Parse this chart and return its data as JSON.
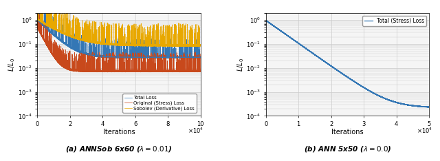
{
  "left_caption": "(a) ANNSob 6x60 ($\\lambda = 0.01$)",
  "right_caption": "(b) ANN 5x50 ($\\lambda = 0.0$)",
  "ylabel": "$L / L_0$",
  "xlabel": "Iterations",
  "left_xlim": [
    0,
    100000
  ],
  "left_ylim": [
    0.0001,
    2.0
  ],
  "right_xlim": [
    0,
    50000
  ],
  "right_ylim": [
    0.0001,
    2.0
  ],
  "color_total": "#3477b5",
  "color_stress": "#c8491c",
  "color_sobolev": "#e8a800",
  "legend_labels": [
    "Total Loss",
    "Original (Stress) Loss",
    "Sobolev (Derivative) Loss"
  ],
  "grid_color": "#cccccc",
  "bg_color": "#f5f5f5"
}
